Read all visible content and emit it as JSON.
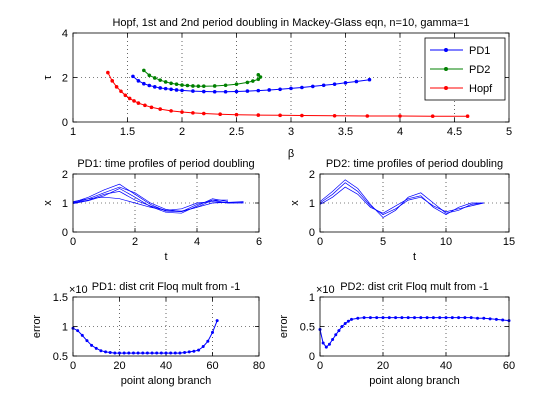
{
  "chart_data": [
    {
      "type": "line",
      "title": "Hopf, 1st and 2nd period doubling in Mackey-Glass eqn,  n=10, gamma=1",
      "xlabel": "β",
      "ylabel": "τ",
      "xlim": [
        1,
        5
      ],
      "ylim": [
        0,
        4
      ],
      "xticks": [
        "1",
        "1.5",
        "2",
        "2.5",
        "3",
        "3.5",
        "4",
        "4.5",
        "5"
      ],
      "yticks": [
        "0",
        "2",
        "4"
      ],
      "grid": true,
      "legend": "top-right",
      "series": [
        {
          "name": "PD1",
          "color": "#0000ff",
          "x": [
            1.55,
            1.6,
            1.65,
            1.7,
            1.75,
            1.8,
            1.85,
            1.9,
            1.95,
            2.0,
            2.1,
            2.2,
            2.3,
            2.4,
            2.5,
            2.6,
            2.7,
            2.8,
            2.9,
            3.0,
            3.1,
            3.2,
            3.3,
            3.4,
            3.5,
            3.6,
            3.72
          ],
          "y": [
            2.05,
            1.85,
            1.72,
            1.64,
            1.58,
            1.53,
            1.5,
            1.47,
            1.44,
            1.42,
            1.39,
            1.37,
            1.36,
            1.36,
            1.37,
            1.39,
            1.41,
            1.44,
            1.47,
            1.51,
            1.55,
            1.6,
            1.65,
            1.7,
            1.76,
            1.82,
            1.9
          ]
        },
        {
          "name": "PD2",
          "color": "#008000",
          "x": [
            1.65,
            1.7,
            1.75,
            1.8,
            1.85,
            1.9,
            1.95,
            2.0,
            2.05,
            2.1,
            2.15,
            2.2,
            2.3,
            2.4,
            2.5,
            2.6,
            2.65,
            2.7,
            2.72,
            2.7
          ],
          "y": [
            2.32,
            2.1,
            1.98,
            1.88,
            1.8,
            1.74,
            1.7,
            1.66,
            1.64,
            1.62,
            1.61,
            1.61,
            1.62,
            1.65,
            1.7,
            1.78,
            1.84,
            1.92,
            2.02,
            2.12
          ]
        },
        {
          "name": "Hopf",
          "color": "#ff0000",
          "x": [
            1.32,
            1.36,
            1.4,
            1.44,
            1.48,
            1.52,
            1.56,
            1.6,
            1.66,
            1.72,
            1.8,
            1.9,
            2.0,
            2.1,
            2.2,
            2.35,
            2.5,
            2.7,
            2.9,
            3.1,
            3.4,
            3.7,
            4.0,
            4.3,
            4.62
          ],
          "y": [
            2.22,
            1.85,
            1.58,
            1.38,
            1.2,
            1.06,
            0.95,
            0.85,
            0.75,
            0.66,
            0.58,
            0.5,
            0.45,
            0.41,
            0.38,
            0.35,
            0.33,
            0.31,
            0.3,
            0.29,
            0.28,
            0.27,
            0.27,
            0.26,
            0.26
          ]
        }
      ]
    },
    {
      "type": "line",
      "title": "PD1: time profiles of period doubling",
      "xlabel": "t",
      "ylabel": "x",
      "xlim": [
        0,
        6
      ],
      "ylim": [
        0,
        2
      ],
      "xticks": [
        "0",
        "2",
        "4",
        "6"
      ],
      "yticks": [
        "0",
        "1",
        "2"
      ],
      "grid": true,
      "series": [
        {
          "name": "",
          "color": "#0000ff",
          "x": [
            0,
            0.5,
            1.0,
            1.5,
            2.0,
            2.5,
            3.0,
            3.5,
            4.0,
            4.5,
            5.0,
            5.5
          ],
          "y": [
            1.05,
            1.15,
            1.2,
            1.15,
            1.0,
            0.85,
            0.75,
            0.72,
            0.85,
            1.0,
            1.02,
            1.05
          ]
        },
        {
          "name": "",
          "color": "#0000ff",
          "x": [
            0,
            0.5,
            1.0,
            1.5,
            2.0,
            2.5,
            3.0,
            3.5,
            4.0,
            4.5,
            5.0,
            5.5
          ],
          "y": [
            1.0,
            1.1,
            1.3,
            1.4,
            1.1,
            0.9,
            0.75,
            0.8,
            1.0,
            1.05,
            1.0,
            1.02
          ]
        },
        {
          "name": "",
          "color": "#0000ff",
          "x": [
            0,
            0.5,
            1.0,
            1.5,
            2.0,
            2.5,
            3.0,
            3.5,
            4.0,
            4.5,
            5.0,
            5.5
          ],
          "y": [
            1.02,
            1.2,
            1.45,
            1.65,
            1.3,
            0.95,
            0.72,
            0.7,
            0.95,
            1.1,
            1.0,
            1.0
          ]
        },
        {
          "name": "",
          "color": "#0000ff",
          "x": [
            0,
            0.5,
            1.0,
            1.5,
            2.0,
            2.5,
            3.0,
            3.5,
            4.0,
            4.5,
            5.0
          ],
          "y": [
            0.98,
            1.08,
            1.25,
            1.5,
            1.2,
            0.88,
            0.68,
            0.65,
            0.9,
            1.15,
            1.05
          ]
        },
        {
          "name": "",
          "color": "#0000ff",
          "x": [
            0,
            0.5,
            1.0,
            1.5,
            2.0,
            2.5,
            3.0,
            3.5,
            4.0,
            4.5,
            5.0
          ],
          "y": [
            1.0,
            1.15,
            1.35,
            1.55,
            1.35,
            1.0,
            0.78,
            0.7,
            0.85,
            1.1,
            1.1
          ]
        }
      ]
    },
    {
      "type": "line",
      "title": "PD2: time profiles of period doubling",
      "xlabel": "t",
      "ylabel": "x",
      "xlim": [
        0,
        15
      ],
      "ylim": [
        0,
        2
      ],
      "xticks": [
        "0",
        "5",
        "10",
        "15"
      ],
      "yticks": [
        "0",
        "1",
        "2"
      ],
      "grid": true,
      "series": [
        {
          "name": "",
          "color": "#0000ff",
          "x": [
            0,
            1,
            2,
            3,
            4,
            5,
            6,
            7,
            8,
            9,
            10,
            11,
            12,
            13
          ],
          "y": [
            1.0,
            1.3,
            1.7,
            1.4,
            0.9,
            0.6,
            0.8,
            1.1,
            1.2,
            0.9,
            0.7,
            0.8,
            0.9,
            1.0
          ]
        },
        {
          "name": "",
          "color": "#0000ff",
          "x": [
            0,
            1,
            2,
            3,
            4,
            5,
            6,
            7,
            8,
            9,
            10,
            11,
            12,
            13
          ],
          "y": [
            1.05,
            1.4,
            1.8,
            1.5,
            0.95,
            0.5,
            0.75,
            1.2,
            1.35,
            1.0,
            0.65,
            0.75,
            0.95,
            1.0
          ]
        },
        {
          "name": "",
          "color": "#0000ff",
          "x": [
            0,
            1,
            2,
            3,
            4,
            5,
            6,
            7,
            8,
            9,
            10,
            11,
            12,
            13
          ],
          "y": [
            0.95,
            1.2,
            1.55,
            1.3,
            0.85,
            0.65,
            0.9,
            1.15,
            1.25,
            0.85,
            0.6,
            0.85,
            1.0,
            1.0
          ]
        }
      ]
    },
    {
      "type": "line",
      "title": "PD1: dist crit Floq mult from -1",
      "xlabel": "point along branch",
      "ylabel": "error",
      "xlim": [
        0,
        80
      ],
      "ylim": [
        0.5,
        1.5
      ],
      "xticks": [
        "0",
        "20",
        "40",
        "60",
        "80"
      ],
      "yticks": [
        "0.5",
        "1",
        "1.5"
      ],
      "exponent_label": "×10",
      "grid": true,
      "series": [
        {
          "name": "",
          "color": "#0000ff",
          "x": [
            0,
            2,
            4,
            6,
            8,
            10,
            12,
            14,
            16,
            18,
            20,
            22,
            24,
            26,
            28,
            30,
            32,
            34,
            36,
            38,
            40,
            42,
            44,
            46,
            48,
            50,
            52,
            54,
            56,
            58,
            60,
            62
          ],
          "y": [
            0.97,
            0.93,
            0.85,
            0.76,
            0.68,
            0.63,
            0.59,
            0.57,
            0.56,
            0.55,
            0.55,
            0.55,
            0.55,
            0.55,
            0.55,
            0.55,
            0.55,
            0.55,
            0.55,
            0.55,
            0.55,
            0.55,
            0.55,
            0.55,
            0.56,
            0.57,
            0.58,
            0.6,
            0.66,
            0.75,
            0.9,
            1.1
          ]
        }
      ]
    },
    {
      "type": "line",
      "title": "PD2: dist crit Floq mult from -1",
      "xlabel": "point along branch",
      "ylabel": "error",
      "xlim": [
        0,
        60
      ],
      "ylim": [
        0,
        1
      ],
      "xticks": [
        "0",
        "20",
        "40",
        "60"
      ],
      "yticks": [
        "0",
        "0.5",
        "1"
      ],
      "exponent_label": "×10",
      "grid": true,
      "series": [
        {
          "name": "",
          "color": "#0000ff",
          "x": [
            0,
            1,
            2,
            3,
            4,
            5,
            6,
            7,
            8,
            9,
            10,
            12,
            14,
            16,
            18,
            20,
            22,
            24,
            26,
            28,
            30,
            32,
            34,
            36,
            38,
            40,
            42,
            44,
            46,
            48,
            50,
            52,
            54,
            56,
            58,
            60
          ],
          "y": [
            0.45,
            0.22,
            0.15,
            0.2,
            0.28,
            0.36,
            0.43,
            0.5,
            0.55,
            0.59,
            0.62,
            0.64,
            0.65,
            0.65,
            0.65,
            0.65,
            0.65,
            0.65,
            0.65,
            0.65,
            0.65,
            0.65,
            0.65,
            0.65,
            0.65,
            0.65,
            0.65,
            0.65,
            0.65,
            0.65,
            0.64,
            0.64,
            0.63,
            0.62,
            0.61,
            0.6
          ]
        }
      ]
    }
  ]
}
